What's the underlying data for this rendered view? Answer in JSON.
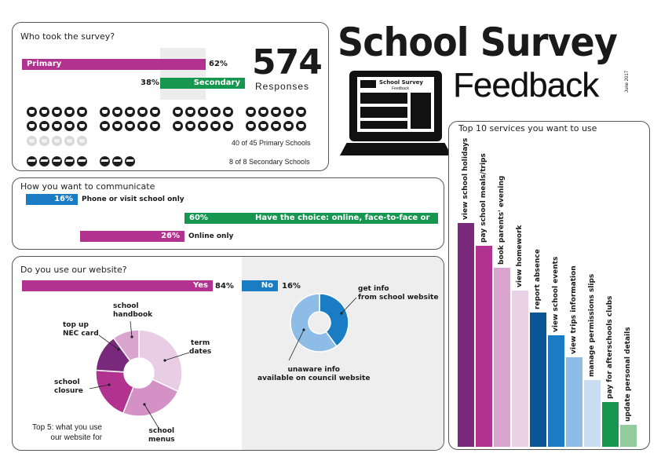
{
  "header": {
    "title": "School Survey",
    "subtitle": "Feedback",
    "date": "June 2017"
  },
  "laptop_screen": {
    "title": "School Survey",
    "subtitle": "Feedback"
  },
  "survey": {
    "title": "Who took the survey?",
    "primary_label": "Primary",
    "primary_pct": "62%",
    "primary_value": 62,
    "secondary_label": "Secondary",
    "secondary_pct": "38%",
    "secondary_value": 38,
    "responses_count": "574",
    "responses_label": "Responses",
    "primary_schools_text": "40 of 45 Primary Schools",
    "secondary_schools_text": "8 of 8 Secondary Schools",
    "primary_schools_total": 45,
    "primary_schools_taken": 40,
    "secondary_schools_total": 8,
    "secondary_schools_taken": 8
  },
  "communicate": {
    "title": "How you want to communicate",
    "items": [
      {
        "pct": "16%",
        "label": "Phone or visit school only",
        "value": 16,
        "color": "#1a7dc3"
      },
      {
        "pct": "60%",
        "label": "Have the choice: online, face-to-face or phone",
        "value": 60,
        "color": "#16964f"
      },
      {
        "pct": "26%",
        "label": "Online only",
        "value": 26,
        "color": "#b1338f"
      }
    ]
  },
  "website": {
    "title": "Do you use our website?",
    "yes_label": "Yes",
    "yes_pct": "84%",
    "no_label": "No",
    "no_pct": "16%",
    "top5_caption_line1": "Top 5: what you use",
    "top5_caption_line2": "our website for",
    "top5": [
      {
        "label_line1": "term",
        "label_line2": "dates",
        "value": 32,
        "color": "#e9cde4"
      },
      {
        "label_line1": "school",
        "label_line2": "menus",
        "value": 24,
        "color": "#d391c6"
      },
      {
        "label_line1": "school",
        "label_line2": "closure",
        "value": 20,
        "color": "#b1338f"
      },
      {
        "label_line1": "top up",
        "label_line2": "NEC card",
        "value": 14,
        "color": "#7a2a7d"
      },
      {
        "label_line1": "school",
        "label_line2": "handbook",
        "value": 10,
        "color": "#d9a5cf"
      }
    ],
    "info_donut": [
      {
        "label_line1": "get info",
        "label_line2": "from school website",
        "value": 40,
        "color": "#1a7dc3"
      },
      {
        "label_line1": "unaware info",
        "label_line2": "available on council website",
        "value": 60,
        "color": "#8dbde6"
      }
    ]
  },
  "services": {
    "title": "Top 10 services you want to use",
    "items": [
      {
        "label": "view school holidays",
        "value": 100,
        "color": "#7a2a7d"
      },
      {
        "label": "pay school meals/trips",
        "value": 90,
        "color": "#b1338f"
      },
      {
        "label": "book parents' evening",
        "value": 80,
        "color": "#d9a5cf"
      },
      {
        "label": "view homework",
        "value": 70,
        "color": "#ead2e6"
      },
      {
        "label": "report absence",
        "value": 60,
        "color": "#0a5596"
      },
      {
        "label": "view school events",
        "value": 50,
        "color": "#1a7dc3"
      },
      {
        "label": "view trips information",
        "value": 40,
        "color": "#8dbde6"
      },
      {
        "label": "manage permissions slips",
        "value": 30,
        "color": "#c9ddf2"
      },
      {
        "label": "pay for afterschools clubs",
        "value": 20,
        "color": "#16964f"
      },
      {
        "label": "update personal details",
        "value": 10,
        "color": "#93cb9f"
      }
    ]
  }
}
